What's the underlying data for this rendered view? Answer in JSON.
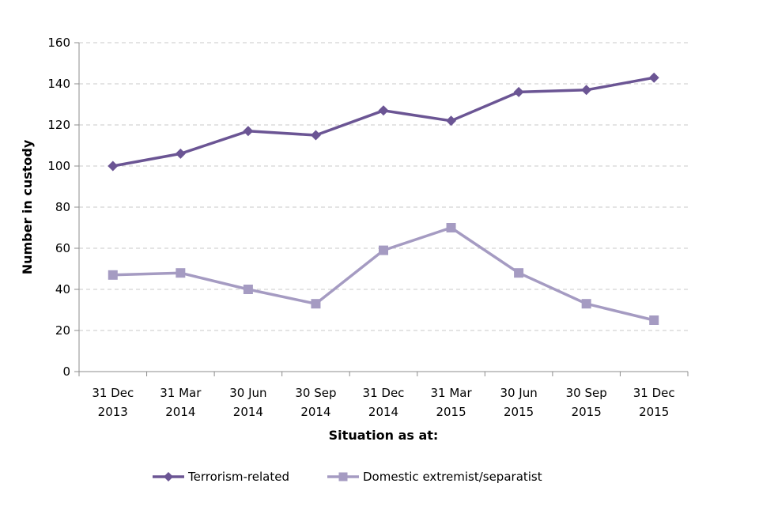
{
  "chart_data": {
    "type": "line",
    "categories": [
      [
        "31 Dec",
        "2013"
      ],
      [
        "31 Mar",
        "2014"
      ],
      [
        "30 Jun",
        "2014"
      ],
      [
        "30 Sep",
        "2014"
      ],
      [
        "31 Dec",
        "2014"
      ],
      [
        "31 Mar",
        "2015"
      ],
      [
        "30 Jun",
        "2015"
      ],
      [
        "30 Sep",
        "2015"
      ],
      [
        "31 Dec",
        "2015"
      ]
    ],
    "series": [
      {
        "name": "Terrorism-related",
        "values": [
          100,
          106,
          117,
          115,
          127,
          122,
          136,
          137,
          143
        ],
        "color": "#6b5594",
        "marker": "diamond"
      },
      {
        "name": "Domestic extremist/separatist",
        "values": [
          47,
          48,
          40,
          33,
          59,
          70,
          48,
          33,
          25
        ],
        "color": "#a59bc2",
        "marker": "square"
      }
    ],
    "xlabel": "Situation as at:",
    "ylabel": "Number in custody",
    "ylim": [
      0,
      160
    ],
    "yticks": [
      0,
      20,
      40,
      60,
      80,
      100,
      120,
      140,
      160
    ],
    "grid": "horizontal-dashed",
    "legend": "bottom"
  }
}
